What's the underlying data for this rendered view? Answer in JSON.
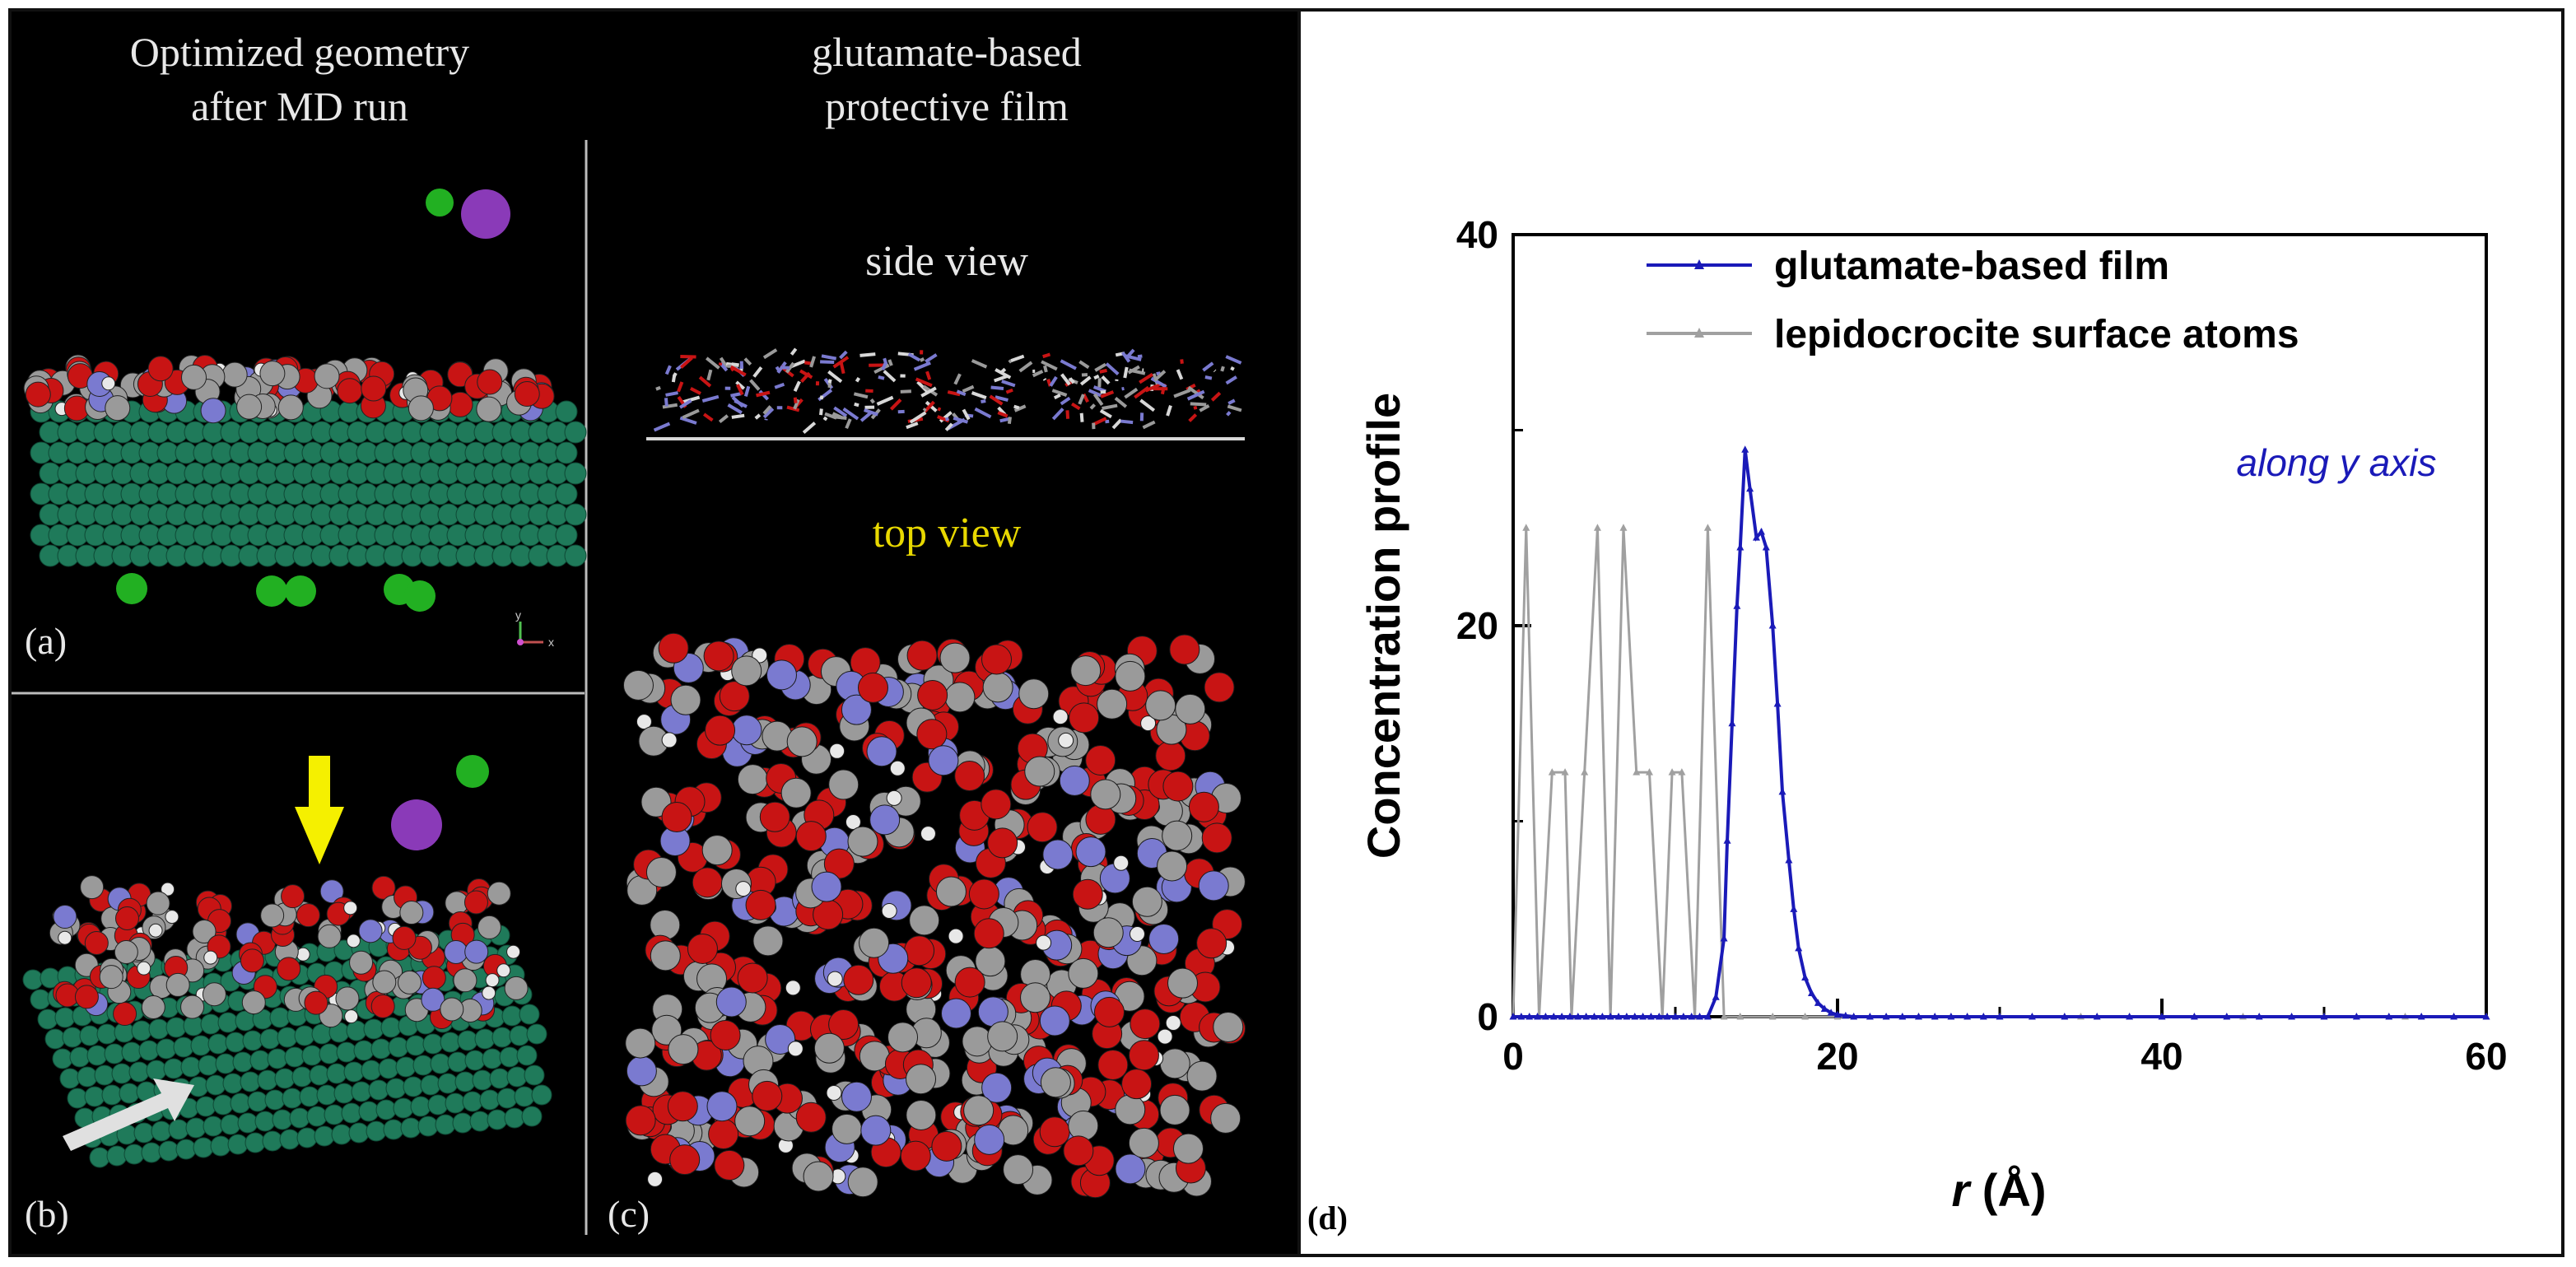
{
  "panel_a": {
    "title_line1": "Optimized geometry",
    "title_line2": "after MD run",
    "label": "(a)"
  },
  "panel_b": {
    "label": "(b)"
  },
  "panel_c": {
    "title_line1": "glutamate-based",
    "title_line2": "protective film",
    "side_view": "side view",
    "top_view": "top view",
    "label": "(c)"
  },
  "panel_d": {
    "label": "(d)"
  },
  "colors": {
    "oxygen": "#c81414",
    "carbon": "#9a9a9a",
    "nitrogen": "#7a7ad0",
    "hydrogen": "#e8e8e8",
    "iron": "#1f7a5a",
    "chloride": "#22b022",
    "sodium": "#8a3ab8",
    "arrow_yellow": "#f5f000",
    "arrow_white": "#e0e0e0",
    "film_series": "#1a1ab8",
    "surface_series": "#a0a0a0",
    "annotation_text": "#1a1ab8",
    "top_view_text": "#e8d800"
  },
  "chart_data": {
    "type": "line",
    "xlabel_var": "r",
    "xlabel_unit": " (Å)",
    "ylabel": "Concentration profile",
    "xlim": [
      0,
      60
    ],
    "ylim": [
      0,
      40
    ],
    "xticks": [
      0,
      20,
      40,
      60
    ],
    "yticks": [
      0,
      20,
      40
    ],
    "annotation": "along y axis",
    "legend_position": "top",
    "series": [
      {
        "name": "glutamate-based film",
        "color": "#1a1ab8",
        "x": [
          0,
          0.5,
          1,
          1.5,
          2,
          2.5,
          3,
          3.5,
          4,
          4.5,
          5,
          5.5,
          6,
          6.5,
          7,
          7.5,
          8,
          8.5,
          9,
          9.5,
          10,
          10.5,
          11,
          11.5,
          12,
          12.5,
          13,
          13.2,
          13.5,
          13.8,
          14,
          14.3,
          14.6,
          15,
          15.3,
          15.6,
          16,
          16.3,
          16.6,
          17,
          17.3,
          17.6,
          18,
          18.4,
          18.8,
          19.2,
          19.6,
          20,
          20.5,
          21,
          22,
          23,
          24,
          25,
          26,
          27,
          28,
          29,
          30,
          32,
          34,
          36,
          38,
          40,
          42,
          44,
          46,
          48,
          50,
          52,
          54,
          56,
          58,
          60
        ],
        "y": [
          0,
          0,
          0,
          0,
          0,
          0,
          0,
          0,
          0,
          0,
          0,
          0,
          0,
          0,
          0,
          0,
          0,
          0,
          0,
          0,
          0,
          0,
          0,
          0,
          0,
          1,
          4,
          9,
          15,
          21,
          24,
          29,
          27,
          24.5,
          24.8,
          24,
          20,
          16,
          11.5,
          8,
          5.5,
          3.5,
          2,
          1.2,
          0.7,
          0.4,
          0.2,
          0.1,
          0.05,
          0,
          0,
          0,
          0,
          0,
          0,
          0,
          0,
          0,
          0,
          0,
          0,
          0,
          0,
          0,
          0,
          0,
          0,
          0,
          0,
          0,
          0,
          0,
          0,
          0
        ]
      },
      {
        "name": "lepidocrocite surface atoms",
        "color": "#a0a0a0",
        "x": [
          0,
          0.8,
          1.6,
          2.4,
          3.2,
          3.6,
          4.4,
          5.2,
          6,
          6.8,
          7.6,
          8.4,
          9.2,
          9.8,
          10.4,
          11.2,
          12,
          13,
          14,
          16,
          18,
          20,
          25,
          30,
          35,
          40,
          45,
          50,
          55,
          60
        ],
        "y": [
          0,
          25,
          0,
          12.5,
          12.5,
          0,
          12.5,
          25,
          0,
          25,
          12.5,
          12.5,
          0,
          12.5,
          12.5,
          0,
          25,
          0,
          0,
          0,
          0,
          0,
          0,
          0,
          0,
          0,
          0,
          0,
          0,
          0
        ]
      }
    ]
  }
}
